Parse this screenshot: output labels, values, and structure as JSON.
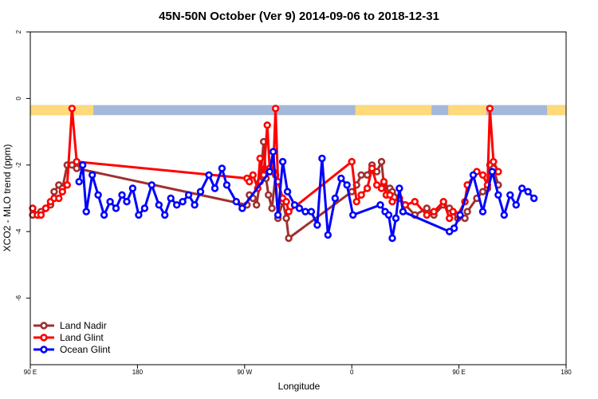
{
  "chart_data": {
    "type": "line",
    "title": "45N-50N October (Ver 9)   2014-09-06 to 2018-12-31",
    "xlabel": "Longitude",
    "ylabel": "XCO2 - MLO trend (ppm)",
    "x_ticks": [
      {
        "value": 90,
        "label": "90 E"
      },
      {
        "value": 180,
        "label": "180"
      },
      {
        "value": 270,
        "label": "90 W"
      },
      {
        "value": 360,
        "label": "0"
      },
      {
        "value": 450,
        "label": "90 E"
      },
      {
        "value": 540,
        "label": "180"
      }
    ],
    "y_ticks": [
      {
        "value": 2,
        "label": "2"
      },
      {
        "value": 0,
        "label": "0"
      },
      {
        "value": -2,
        "label": "-2"
      },
      {
        "value": -4,
        "label": "-4"
      },
      {
        "value": -6,
        "label": "-6"
      }
    ],
    "xlim": [
      90,
      540
    ],
    "ylim": [
      -8,
      2
    ],
    "grid": false,
    "legend_position": "bottom-left",
    "land_mask": {
      "y_top": -0.2,
      "y_bottom": -0.5,
      "land_color": "#FFD97A",
      "ocean_color": "#A4B8DA",
      "land_segments": [
        [
          90,
          143
        ],
        [
          363,
          427
        ],
        [
          441,
          473
        ],
        [
          524,
          540
        ]
      ]
    },
    "series": [
      {
        "name": "Land Nadir",
        "color": "#A0302E",
        "x": [
          92,
          96,
          99,
          103,
          107,
          110,
          114,
          117,
          121,
          125,
          129,
          272,
          274,
          277,
          280,
          283,
          286,
          288,
          290,
          293,
          296,
          298,
          302,
          305,
          307,
          360,
          364,
          368,
          373,
          377,
          381,
          385,
          387,
          389,
          392,
          394,
          400,
          405,
          413,
          423,
          429,
          437,
          442,
          445,
          449,
          455,
          457,
          465,
          470,
          474,
          476,
          479,
          483
        ],
        "y": [
          -3.5,
          -3.5,
          -3.4,
          -3.3,
          -3.2,
          -2.8,
          -2.6,
          -2.7,
          -2.0,
          -2.0,
          -2.1,
          -3.2,
          -2.9,
          -3.0,
          -3.2,
          -2.5,
          -1.3,
          -2.4,
          -2.9,
          -3.3,
          -2.3,
          -3.6,
          -3.1,
          -3.6,
          -4.2,
          -2.8,
          -2.6,
          -2.3,
          -2.3,
          -2.0,
          -2.2,
          -1.9,
          -2.6,
          -2.9,
          -2.7,
          -2.8,
          -3.0,
          -3.2,
          -3.5,
          -3.3,
          -3.5,
          -3.2,
          -3.3,
          -3.4,
          -3.6,
          -3.6,
          -3.4,
          -3.0,
          -2.8,
          -2.7,
          -2.0,
          -2.1,
          -2.6
        ]
      },
      {
        "name": "Land Glint",
        "color": "#FF0000",
        "x": [
          92,
          96,
          99,
          103,
          107,
          110,
          114,
          117,
          121,
          125,
          129,
          272,
          274,
          277,
          281,
          283,
          286,
          289,
          291,
          294,
          296,
          298,
          302,
          305,
          307,
          360,
          364,
          368,
          373,
          377,
          381,
          385,
          387,
          389,
          392,
          394,
          400,
          405,
          413,
          423,
          429,
          437,
          442,
          445,
          449,
          455,
          457,
          465,
          470,
          474,
          476,
          479,
          483
        ],
        "y": [
          -3.3,
          -3.5,
          -3.5,
          -3.3,
          -3.1,
          -3.0,
          -3.0,
          -2.8,
          -2.6,
          -0.3,
          -1.9,
          -2.4,
          -2.5,
          -2.3,
          -2.7,
          -1.8,
          -2.3,
          -0.8,
          -2.1,
          -2.2,
          -0.3,
          -2.5,
          -3.0,
          -3.1,
          -3.4,
          -1.9,
          -3.1,
          -2.9,
          -2.7,
          -2.1,
          -2.6,
          -2.7,
          -2.5,
          -2.9,
          -2.9,
          -3.1,
          -3.0,
          -3.2,
          -3.1,
          -3.5,
          -3.4,
          -3.1,
          -3.6,
          -3.4,
          -3.5,
          -3.1,
          -2.6,
          -2.2,
          -2.3,
          -2.6,
          -0.3,
          -1.9,
          -2.2
        ]
      },
      {
        "name": "Ocean Glint",
        "color": "#0000FF",
        "x": [
          131,
          134,
          137,
          142,
          147,
          152,
          157,
          162,
          167,
          171,
          176,
          181,
          186,
          192,
          198,
          203,
          208,
          213,
          218,
          223,
          228,
          233,
          240,
          245,
          251,
          255,
          263,
          268,
          291,
          294,
          298,
          302,
          306,
          312,
          316,
          321,
          326,
          331,
          335,
          340,
          346,
          351,
          356,
          361,
          384,
          388,
          391,
          394,
          397,
          400,
          403,
          442,
          446,
          451,
          462,
          470,
          478,
          483,
          488,
          493,
          498,
          503,
          508,
          513
        ],
        "y": [
          -2.5,
          -2.0,
          -3.4,
          -2.3,
          -2.9,
          -3.5,
          -3.1,
          -3.3,
          -2.9,
          -3.1,
          -2.7,
          -3.5,
          -3.3,
          -2.6,
          -3.2,
          -3.5,
          -3.0,
          -3.2,
          -3.1,
          -2.9,
          -3.2,
          -2.8,
          -2.3,
          -2.7,
          -2.1,
          -2.6,
          -3.1,
          -3.3,
          -2.2,
          -1.6,
          -3.5,
          -1.9,
          -2.8,
          -3.2,
          -3.3,
          -3.4,
          -3.4,
          -3.8,
          -1.8,
          -4.1,
          -3.0,
          -2.4,
          -2.6,
          -3.5,
          -3.2,
          -3.4,
          -3.5,
          -4.2,
          -3.6,
          -2.7,
          -3.4,
          -4.0,
          -3.9,
          -3.5,
          -2.3,
          -3.4,
          -2.2,
          -2.9,
          -3.5,
          -2.9,
          -3.2,
          -2.7,
          -2.8,
          -3.0
        ]
      }
    ]
  }
}
